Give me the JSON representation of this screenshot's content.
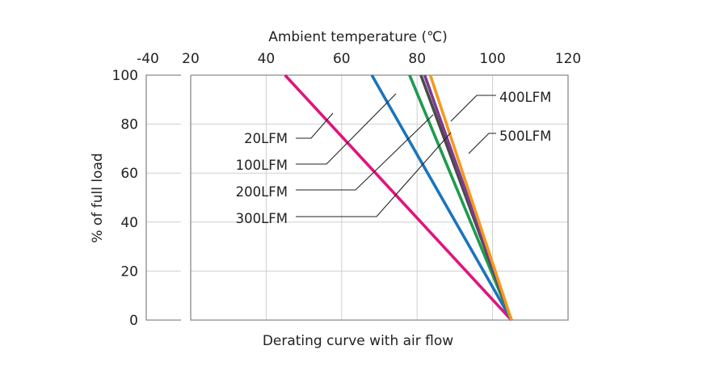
{
  "chart_data": {
    "type": "line",
    "title": "",
    "caption": "Derating curve with air flow",
    "xlabel": "Ambient temperature (℃)",
    "ylabel": "% of full load",
    "xlim": [
      -40,
      120
    ],
    "ylim": [
      0,
      100
    ],
    "xticks": [
      "-40",
      "20",
      "40",
      "60",
      "80",
      "100",
      "120"
    ],
    "yticks": [
      "100",
      "80",
      "60",
      "40",
      "20",
      "0"
    ],
    "x_axis_position": "top",
    "grid": true,
    "axis_break": "between -40 and 20",
    "series": [
      {
        "name": "20LFM",
        "color": "#e0147c",
        "points": [
          [
            45,
            100
          ],
          [
            105,
            0
          ]
        ]
      },
      {
        "name": "100LFM",
        "color": "#1c74bd",
        "points": [
          [
            68,
            100
          ],
          [
            105,
            0
          ]
        ]
      },
      {
        "name": "200LFM",
        "color": "#1e9b4e",
        "points": [
          [
            78,
            100
          ],
          [
            105,
            0
          ]
        ]
      },
      {
        "name": "300LFM",
        "color": "#4a4a4a",
        "points": [
          [
            81,
            100
          ],
          [
            105,
            0
          ]
        ]
      },
      {
        "name": "400LFM",
        "color": "#7a3b8f",
        "points": [
          [
            82,
            100
          ],
          [
            105,
            0
          ]
        ]
      },
      {
        "name": "500LFM",
        "color": "#f39a1e",
        "points": [
          [
            83.5,
            100
          ],
          [
            105,
            0
          ]
        ]
      }
    ]
  }
}
